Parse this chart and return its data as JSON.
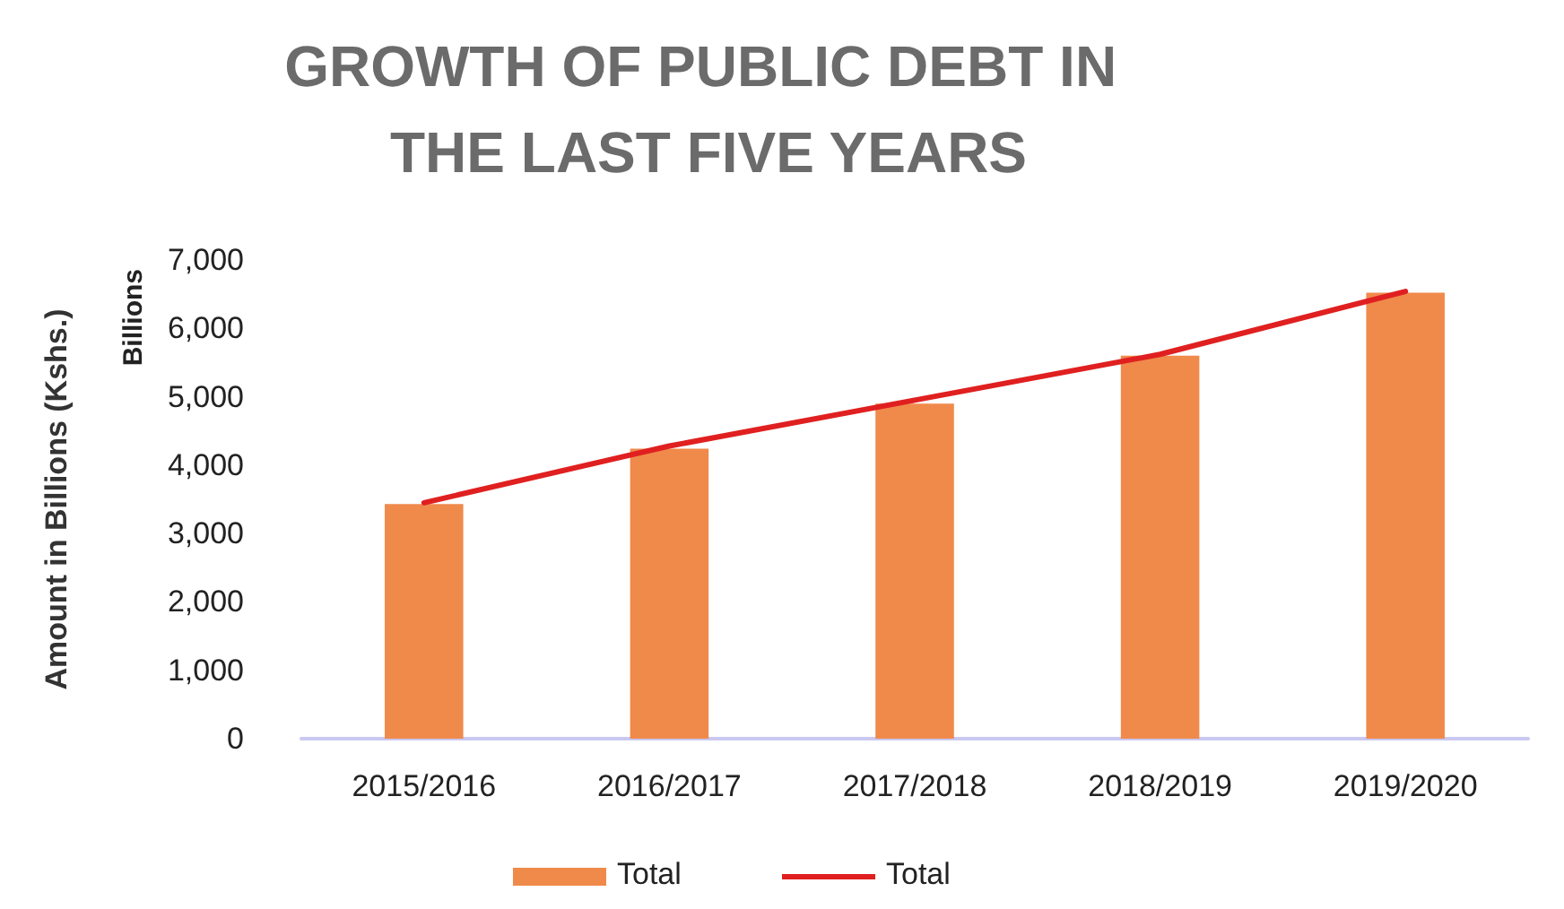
{
  "chart_data": {
    "type": "bar",
    "title": "GROWTH OF PUBLIC DEBT IN THE LAST FIVE YEARS",
    "ylabel": "Amount in Billions (Kshs.)",
    "annotations": [
      "Billions"
    ],
    "categories": [
      "2015/2016",
      "2016/2017",
      "2017/2018",
      "2018/2019",
      "2019/2020"
    ],
    "series": [
      {
        "name": "Total",
        "color": "#f08a4b",
        "values": [
          3430,
          4240,
          4900,
          5600,
          6520
        ]
      },
      {
        "name": "Total",
        "type": "line",
        "color": "#e02020",
        "values": [
          3450,
          4280,
          4950,
          5620,
          6540
        ]
      }
    ],
    "ylim": [
      0,
      7000
    ],
    "yticks": [
      0,
      {
        "value": 1000,
        "label": "1,000"
      },
      {
        "value": 2000,
        "label": "2,000"
      },
      {
        "value": 3000,
        "label": "3,000"
      },
      {
        "value": 4000,
        "label": "4,000"
      },
      {
        "value": 5000,
        "label": "5,000"
      },
      {
        "value": 6000,
        "label": "6,000"
      },
      {
        "value": 7000,
        "label": "7,000"
      }
    ],
    "grid": false,
    "legend": "bottom",
    "marker": "none",
    "line_style": "solid"
  }
}
